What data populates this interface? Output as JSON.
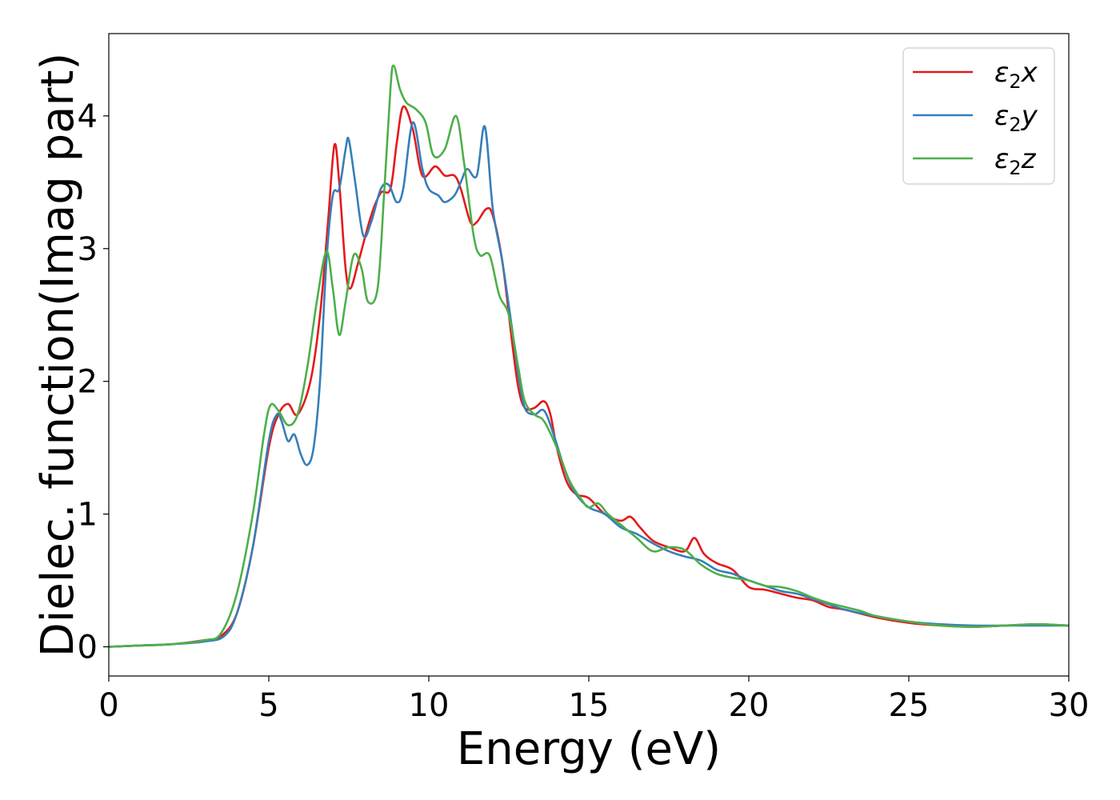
{
  "chart_data": {
    "type": "line",
    "xlabel": "Energy (eV)",
    "ylabel": "Dielec. function(Imag part)",
    "xlim": [
      0,
      30
    ],
    "ylim": [
      -0.22,
      4.62
    ],
    "xticks": [
      0,
      5,
      10,
      15,
      20,
      25,
      30
    ],
    "yticks": [
      0,
      1,
      2,
      3,
      4
    ],
    "grid": false,
    "legend_position": "top-right",
    "series": [
      {
        "name": "ε₂x",
        "legend_main": "ε",
        "legend_sub": "2",
        "legend_suffix": "x",
        "color": "#e41a1c",
        "points": [
          [
            0,
            0
          ],
          [
            1,
            0.01
          ],
          [
            2,
            0.02
          ],
          [
            3,
            0.05
          ],
          [
            3.5,
            0.08
          ],
          [
            4,
            0.25
          ],
          [
            4.5,
            0.75
          ],
          [
            5,
            1.5
          ],
          [
            5.3,
            1.75
          ],
          [
            5.6,
            1.83
          ],
          [
            5.9,
            1.75
          ],
          [
            6.3,
            2.0
          ],
          [
            6.6,
            2.5
          ],
          [
            6.85,
            3.2
          ],
          [
            7.05,
            3.78
          ],
          [
            7.2,
            3.5
          ],
          [
            7.4,
            2.85
          ],
          [
            7.55,
            2.7
          ],
          [
            7.8,
            2.9
          ],
          [
            8.2,
            3.25
          ],
          [
            8.5,
            3.42
          ],
          [
            8.8,
            3.45
          ],
          [
            9.0,
            3.8
          ],
          [
            9.2,
            4.07
          ],
          [
            9.5,
            3.9
          ],
          [
            9.8,
            3.55
          ],
          [
            10.2,
            3.62
          ],
          [
            10.5,
            3.55
          ],
          [
            10.8,
            3.55
          ],
          [
            11.0,
            3.45
          ],
          [
            11.3,
            3.2
          ],
          [
            11.5,
            3.2
          ],
          [
            11.8,
            3.3
          ],
          [
            12.0,
            3.25
          ],
          [
            12.3,
            2.9
          ],
          [
            12.6,
            2.3
          ],
          [
            12.8,
            1.95
          ],
          [
            13.0,
            1.8
          ],
          [
            13.3,
            1.8
          ],
          [
            13.6,
            1.85
          ],
          [
            13.8,
            1.75
          ],
          [
            14.0,
            1.5
          ],
          [
            14.3,
            1.25
          ],
          [
            14.6,
            1.15
          ],
          [
            15.0,
            1.12
          ],
          [
            15.5,
            1.0
          ],
          [
            16.0,
            0.95
          ],
          [
            16.3,
            0.98
          ],
          [
            16.6,
            0.9
          ],
          [
            17.0,
            0.8
          ],
          [
            17.5,
            0.75
          ],
          [
            18.0,
            0.72
          ],
          [
            18.3,
            0.82
          ],
          [
            18.6,
            0.7
          ],
          [
            19.0,
            0.63
          ],
          [
            19.5,
            0.58
          ],
          [
            20.0,
            0.45
          ],
          [
            20.5,
            0.43
          ],
          [
            21.0,
            0.4
          ],
          [
            21.5,
            0.37
          ],
          [
            22.0,
            0.35
          ],
          [
            22.5,
            0.3
          ],
          [
            23.0,
            0.28
          ],
          [
            24.0,
            0.22
          ],
          [
            25.0,
            0.18
          ],
          [
            26.0,
            0.16
          ],
          [
            27.0,
            0.15
          ],
          [
            28.0,
            0.16
          ],
          [
            29.0,
            0.17
          ],
          [
            30,
            0.16
          ]
        ]
      },
      {
        "name": "ε₂y",
        "legend_main": "ε",
        "legend_sub": "2",
        "legend_suffix": "y",
        "color": "#377eb8",
        "points": [
          [
            0,
            0
          ],
          [
            1,
            0.01
          ],
          [
            2,
            0.02
          ],
          [
            3,
            0.04
          ],
          [
            3.6,
            0.08
          ],
          [
            4,
            0.25
          ],
          [
            4.5,
            0.75
          ],
          [
            5,
            1.55
          ],
          [
            5.25,
            1.75
          ],
          [
            5.4,
            1.7
          ],
          [
            5.6,
            1.55
          ],
          [
            5.8,
            1.6
          ],
          [
            6.0,
            1.45
          ],
          [
            6.2,
            1.37
          ],
          [
            6.4,
            1.5
          ],
          [
            6.6,
            2.0
          ],
          [
            6.8,
            2.9
          ],
          [
            7.0,
            3.4
          ],
          [
            7.2,
            3.45
          ],
          [
            7.4,
            3.75
          ],
          [
            7.5,
            3.82
          ],
          [
            7.7,
            3.5
          ],
          [
            7.95,
            3.1
          ],
          [
            8.2,
            3.2
          ],
          [
            8.5,
            3.45
          ],
          [
            8.75,
            3.48
          ],
          [
            9.0,
            3.35
          ],
          [
            9.2,
            3.45
          ],
          [
            9.5,
            3.95
          ],
          [
            9.8,
            3.6
          ],
          [
            10.0,
            3.45
          ],
          [
            10.3,
            3.4
          ],
          [
            10.5,
            3.35
          ],
          [
            10.8,
            3.4
          ],
          [
            11.0,
            3.5
          ],
          [
            11.2,
            3.6
          ],
          [
            11.5,
            3.55
          ],
          [
            11.75,
            3.92
          ],
          [
            12.0,
            3.3
          ],
          [
            12.3,
            2.9
          ],
          [
            12.6,
            2.4
          ],
          [
            12.8,
            2.05
          ],
          [
            13.0,
            1.8
          ],
          [
            13.3,
            1.75
          ],
          [
            13.6,
            1.78
          ],
          [
            13.9,
            1.6
          ],
          [
            14.3,
            1.3
          ],
          [
            14.6,
            1.15
          ],
          [
            15.0,
            1.05
          ],
          [
            15.5,
            1.0
          ],
          [
            16.0,
            0.9
          ],
          [
            16.5,
            0.85
          ],
          [
            17.0,
            0.78
          ],
          [
            17.5,
            0.72
          ],
          [
            18.0,
            0.68
          ],
          [
            18.5,
            0.65
          ],
          [
            19.0,
            0.58
          ],
          [
            19.5,
            0.55
          ],
          [
            20.0,
            0.5
          ],
          [
            20.5,
            0.46
          ],
          [
            21.0,
            0.42
          ],
          [
            21.5,
            0.4
          ],
          [
            22.0,
            0.36
          ],
          [
            22.5,
            0.32
          ],
          [
            23.0,
            0.28
          ],
          [
            24.0,
            0.23
          ],
          [
            25.0,
            0.19
          ],
          [
            26.0,
            0.17
          ],
          [
            27.0,
            0.16
          ],
          [
            28.0,
            0.16
          ],
          [
            29.0,
            0.16
          ],
          [
            30,
            0.16
          ]
        ]
      },
      {
        "name": "ε₂z",
        "legend_main": "ε",
        "legend_sub": "2",
        "legend_suffix": "z",
        "color": "#4daf4a",
        "points": [
          [
            0,
            0
          ],
          [
            1,
            0.01
          ],
          [
            2,
            0.02
          ],
          [
            3,
            0.05
          ],
          [
            3.5,
            0.1
          ],
          [
            4,
            0.4
          ],
          [
            4.5,
            1.0
          ],
          [
            4.85,
            1.6
          ],
          [
            5.05,
            1.82
          ],
          [
            5.3,
            1.78
          ],
          [
            5.6,
            1.67
          ],
          [
            5.9,
            1.75
          ],
          [
            6.2,
            2.1
          ],
          [
            6.5,
            2.6
          ],
          [
            6.8,
            2.98
          ],
          [
            7.0,
            2.7
          ],
          [
            7.2,
            2.35
          ],
          [
            7.4,
            2.6
          ],
          [
            7.65,
            2.95
          ],
          [
            7.9,
            2.85
          ],
          [
            8.1,
            2.6
          ],
          [
            8.4,
            2.7
          ],
          [
            8.6,
            3.4
          ],
          [
            8.8,
            4.2
          ],
          [
            8.9,
            4.38
          ],
          [
            9.1,
            4.2
          ],
          [
            9.3,
            4.1
          ],
          [
            9.6,
            4.05
          ],
          [
            9.9,
            3.95
          ],
          [
            10.15,
            3.7
          ],
          [
            10.5,
            3.75
          ],
          [
            10.85,
            4.0
          ],
          [
            11.1,
            3.65
          ],
          [
            11.4,
            3.1
          ],
          [
            11.6,
            2.95
          ],
          [
            11.9,
            2.95
          ],
          [
            12.2,
            2.65
          ],
          [
            12.5,
            2.5
          ],
          [
            12.8,
            2.1
          ],
          [
            13.0,
            1.85
          ],
          [
            13.3,
            1.75
          ],
          [
            13.6,
            1.7
          ],
          [
            14.0,
            1.5
          ],
          [
            14.4,
            1.25
          ],
          [
            14.8,
            1.1
          ],
          [
            15.0,
            1.05
          ],
          [
            15.3,
            1.08
          ],
          [
            15.6,
            1.0
          ],
          [
            16.0,
            0.92
          ],
          [
            16.5,
            0.82
          ],
          [
            17.0,
            0.72
          ],
          [
            17.5,
            0.75
          ],
          [
            18.0,
            0.73
          ],
          [
            18.5,
            0.62
          ],
          [
            19.0,
            0.55
          ],
          [
            19.5,
            0.52
          ],
          [
            20.0,
            0.5
          ],
          [
            20.5,
            0.46
          ],
          [
            21.0,
            0.45
          ],
          [
            21.5,
            0.42
          ],
          [
            22.0,
            0.37
          ],
          [
            22.5,
            0.33
          ],
          [
            23.0,
            0.3
          ],
          [
            23.5,
            0.27
          ],
          [
            24.0,
            0.23
          ],
          [
            25.0,
            0.19
          ],
          [
            26.0,
            0.16
          ],
          [
            27.0,
            0.15
          ],
          [
            28.0,
            0.16
          ],
          [
            29.0,
            0.17
          ],
          [
            30,
            0.16
          ]
        ]
      }
    ]
  }
}
